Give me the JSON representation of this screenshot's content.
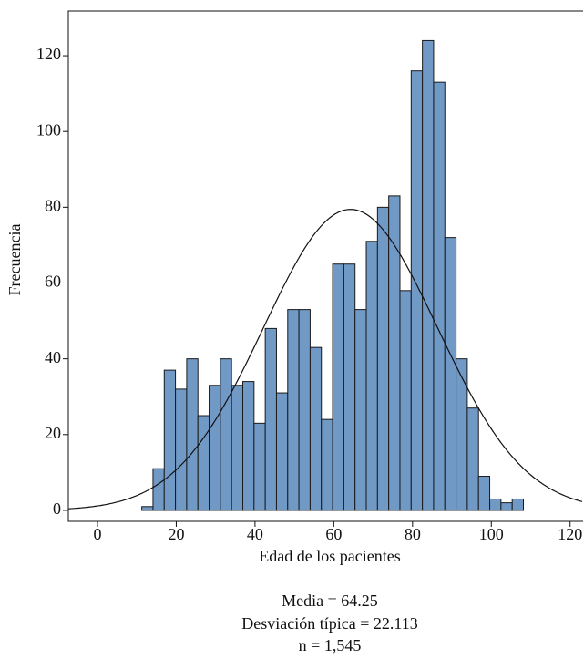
{
  "chart_data": {
    "type": "histogram",
    "x_label": "Edad de los pacientes",
    "y_label": "Frecuencia",
    "bins": [
      11.25,
      14.1,
      16.95,
      19.8,
      22.65,
      25.5,
      28.35,
      31.2,
      34.05,
      36.9,
      39.75,
      42.6,
      45.45,
      48.3,
      51.15,
      54,
      56.85,
      59.7,
      62.55,
      65.4,
      68.25,
      71.1,
      73.95,
      76.8,
      79.65,
      82.5,
      85.35,
      88.2,
      91.05,
      93.9,
      96.75,
      99.6,
      102.45,
      105.3,
      108.15
    ],
    "values": [
      1,
      11,
      37,
      32,
      40,
      25,
      33,
      40,
      33,
      34,
      23,
      48,
      31,
      53,
      53,
      43,
      24,
      65,
      65,
      53,
      71,
      80,
      83,
      58,
      116,
      124,
      113,
      72,
      40,
      27,
      9,
      3,
      2,
      3
    ],
    "color": "#7099c6",
    "xlim": [
      -7.4,
      123.3
    ],
    "xticks": [
      0,
      20,
      40,
      60,
      80,
      100,
      120
    ],
    "ylim": [
      -2.9,
      131.8
    ],
    "yticks": [
      0,
      20,
      40,
      60,
      80,
      100,
      120
    ],
    "normal_curve": {
      "mean": {
        "value": 64.25,
        "label": "Media = 64.25"
      },
      "sd": {
        "value": 22.113,
        "label": "Desviación típica = 22.113"
      },
      "n": {
        "value": 1545,
        "label": "n = 1,545"
      }
    }
  }
}
